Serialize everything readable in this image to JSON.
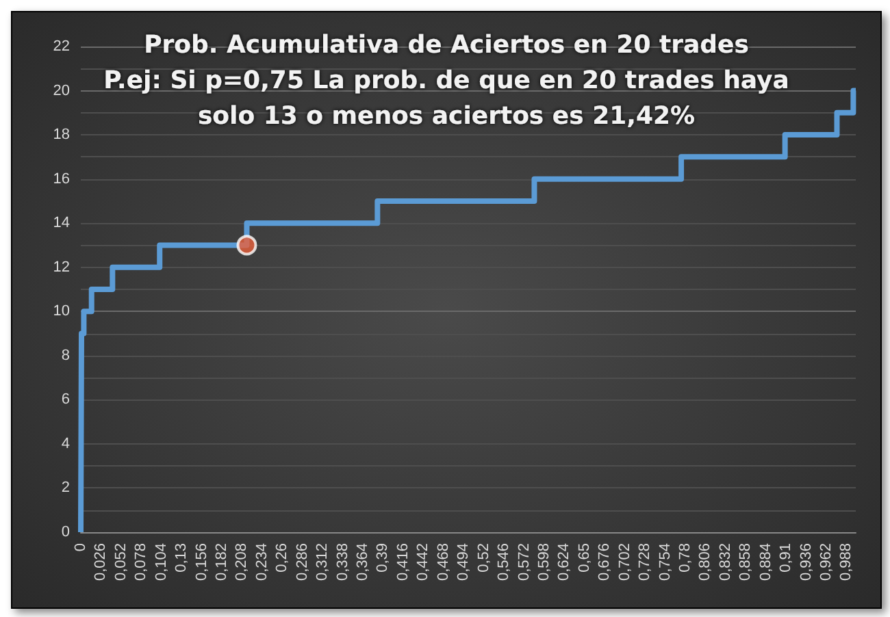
{
  "chart_data": {
    "type": "step",
    "title": "Prob. Acumulativa de Aciertos en 20 trades",
    "subtitle": "P.ej: Si p=0,75 La prob. de que en 20 trades haya\nsolo 13 o menos aciertos es 21,42%",
    "series": [
      {
        "color": "#5b9bd5",
        "marker": "none",
        "x": [
          0,
          0.0009,
          0.0039,
          0.0139,
          0.0409,
          0.1018,
          0.2142,
          0.3828,
          0.5852,
          0.7748,
          0.9087,
          0.9757,
          0.9968,
          1
        ],
        "values": [
          0,
          9,
          10,
          11,
          12,
          13,
          14,
          15,
          16,
          17,
          18,
          19,
          20,
          20
        ]
      },
      {
        "type": "scatter",
        "color": "#e8603c",
        "marker": "circle",
        "x": [
          0.2142
        ],
        "values": [
          13
        ]
      }
    ],
    "xlim": [
      0,
      1
    ],
    "xticks": [
      0,
      {
        "value": 0.026,
        "label": "0,026"
      },
      {
        "value": 0.052,
        "label": "0,052"
      },
      {
        "value": 0.078,
        "label": "0,078"
      },
      {
        "value": 0.104,
        "label": "0,104"
      },
      {
        "value": 0.13,
        "label": "0,13"
      },
      {
        "value": 0.156,
        "label": "0,156"
      },
      {
        "value": 0.182,
        "label": "0,182"
      },
      {
        "value": 0.208,
        "label": "0,208"
      },
      {
        "value": 0.234,
        "label": "0,234"
      },
      {
        "value": 0.26,
        "label": "0,26"
      },
      {
        "value": 0.286,
        "label": "0,286"
      },
      {
        "value": 0.312,
        "label": "0,312"
      },
      {
        "value": 0.338,
        "label": "0,338"
      },
      {
        "value": 0.364,
        "label": "0,364"
      },
      {
        "value": 0.39,
        "label": "0,39"
      },
      {
        "value": 0.416,
        "label": "0,416"
      },
      {
        "value": 0.442,
        "label": "0,442"
      },
      {
        "value": 0.468,
        "label": "0,468"
      },
      {
        "value": 0.494,
        "label": "0,494"
      },
      {
        "value": 0.52,
        "label": "0,52"
      },
      {
        "value": 0.546,
        "label": "0,546"
      },
      {
        "value": 0.572,
        "label": "0,572"
      },
      {
        "value": 0.598,
        "label": "0,598"
      },
      {
        "value": 0.624,
        "label": "0,624"
      },
      {
        "value": 0.65,
        "label": "0,65"
      },
      {
        "value": 0.676,
        "label": "0,676"
      },
      {
        "value": 0.702,
        "label": "0,702"
      },
      {
        "value": 0.728,
        "label": "0,728"
      },
      {
        "value": 0.754,
        "label": "0,754"
      },
      {
        "value": 0.78,
        "label": "0,78"
      },
      {
        "value": 0.806,
        "label": "0,806"
      },
      {
        "value": 0.832,
        "label": "0,832"
      },
      {
        "value": 0.858,
        "label": "0,858"
      },
      {
        "value": 0.884,
        "label": "0,884"
      },
      {
        "value": 0.91,
        "label": "0,91"
      },
      {
        "value": 0.936,
        "label": "0,936"
      },
      {
        "value": 0.962,
        "label": "0,962"
      },
      {
        "value": 0.988,
        "label": "0,988"
      }
    ],
    "ylim": [
      0,
      22
    ],
    "yticks": [
      0,
      2,
      4,
      6,
      8,
      10,
      12,
      14,
      16,
      18,
      20,
      22
    ],
    "grid": "y"
  }
}
